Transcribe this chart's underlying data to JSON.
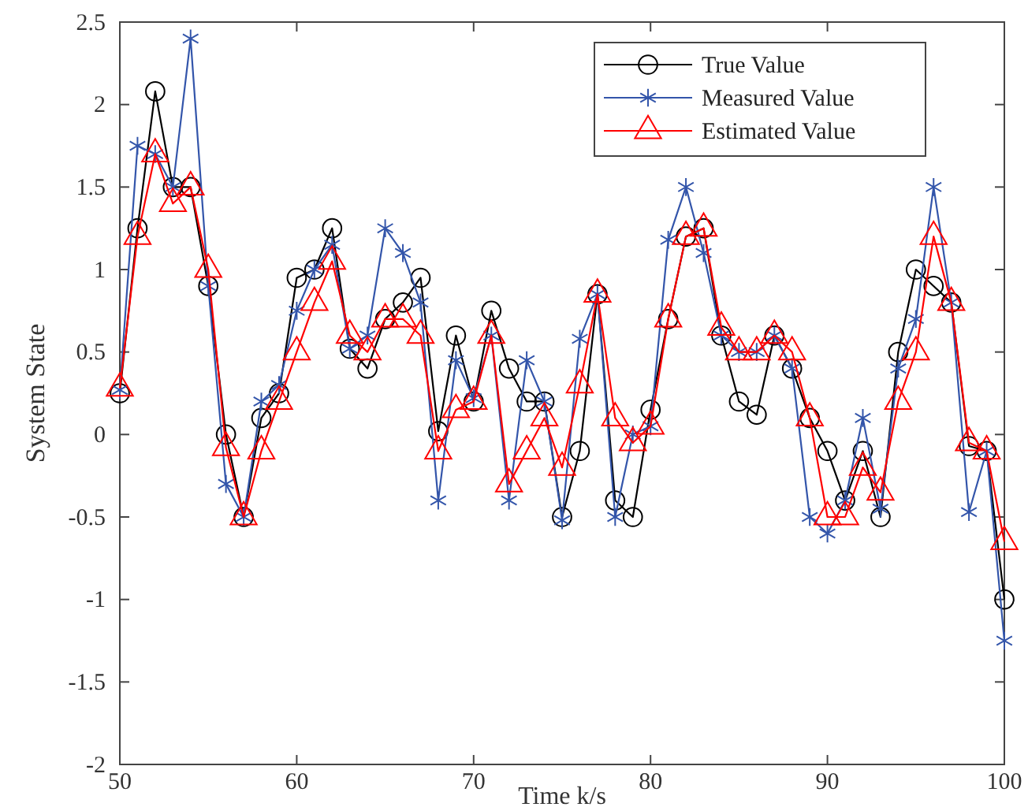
{
  "chart_data": {
    "type": "line",
    "xlabel": "Time k/s",
    "ylabel": "System State",
    "x": [
      50,
      51,
      52,
      53,
      54,
      55,
      56,
      57,
      58,
      59,
      60,
      61,
      62,
      63,
      64,
      65,
      66,
      67,
      68,
      69,
      70,
      71,
      72,
      73,
      74,
      75,
      76,
      77,
      78,
      79,
      80,
      81,
      82,
      83,
      84,
      85,
      86,
      87,
      88,
      89,
      90,
      91,
      92,
      93,
      94,
      95,
      96,
      97,
      98,
      99,
      100
    ],
    "series": [
      {
        "name": "True Value",
        "color": "#000000",
        "marker": "circle",
        "values": [
          0.25,
          1.25,
          2.08,
          1.5,
          1.5,
          0.9,
          0,
          -0.5,
          0.1,
          0.25,
          0.95,
          1.0,
          1.25,
          0.52,
          0.4,
          0.7,
          0.8,
          0.95,
          0.02,
          0.6,
          0.2,
          0.75,
          0.4,
          0.2,
          0.2,
          -0.5,
          -0.1,
          0.85,
          -0.4,
          -0.5,
          0.15,
          0.7,
          1.2,
          1.25,
          0.6,
          0.2,
          0.12,
          0.6,
          0.4,
          0.1,
          -0.1,
          -0.4,
          -0.1,
          -0.5,
          0.5,
          1.0,
          0.9,
          0.8,
          -0.07,
          -0.1,
          -1.0
        ]
      },
      {
        "name": "Measured Value",
        "color": "#3355aa",
        "marker": "cross",
        "values": [
          0.27,
          1.75,
          1.7,
          1.5,
          2.4,
          0.9,
          -0.3,
          -0.5,
          0.2,
          0.3,
          0.75,
          1.0,
          1.15,
          0.52,
          0.6,
          1.25,
          1.1,
          0.8,
          -0.4,
          0.45,
          0.22,
          0.6,
          -0.4,
          0.45,
          0.2,
          -0.52,
          0.58,
          0.85,
          -0.5,
          0.0,
          0.05,
          1.18,
          1.5,
          1.1,
          0.6,
          0.5,
          0.5,
          0.6,
          0.4,
          -0.5,
          -0.6,
          -0.4,
          0.1,
          -0.45,
          0.4,
          0.7,
          1.5,
          0.8,
          -0.47,
          -0.1,
          -1.25
        ]
      },
      {
        "name": "Estimated Value",
        "color": "#ff0000",
        "marker": "triangle",
        "values": [
          0.28,
          1.2,
          1.7,
          1.4,
          1.5,
          1.0,
          -0.08,
          -0.5,
          -0.1,
          0.2,
          0.5,
          0.8,
          1.05,
          0.6,
          0.5,
          0.7,
          0.7,
          0.6,
          -0.1,
          0.15,
          0.2,
          0.6,
          -0.3,
          -0.1,
          0.1,
          -0.2,
          0.3,
          0.85,
          0.1,
          -0.05,
          0.05,
          0.7,
          1.2,
          1.25,
          0.65,
          0.5,
          0.5,
          0.6,
          0.5,
          0.1,
          -0.5,
          -0.5,
          -0.2,
          -0.35,
          0.2,
          0.5,
          1.2,
          0.8,
          -0.05,
          -0.1,
          -0.65
        ]
      }
    ],
    "xlim": [
      50,
      100
    ],
    "xticks": [
      50,
      60,
      70,
      80,
      90,
      100
    ],
    "ylim": [
      -2,
      2.5
    ],
    "yticks": [
      -2,
      -1.5,
      -1,
      -0.5,
      0,
      0.5,
      1,
      1.5,
      2,
      2.5
    ],
    "legend": "top right",
    "grid": false,
    "line_style": "solid"
  }
}
